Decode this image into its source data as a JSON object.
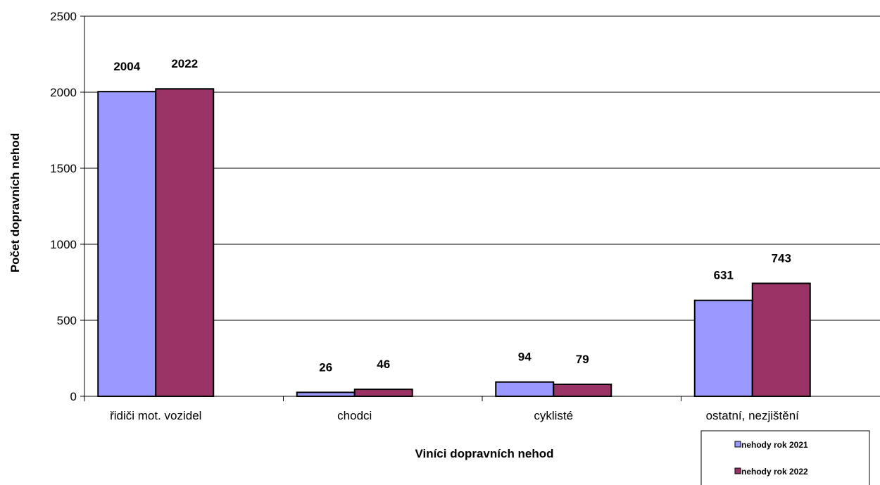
{
  "chart_data": {
    "type": "bar",
    "title": "",
    "xlabel": "Viníci dopravních nehod",
    "ylabel": "Počet dopravních nehod",
    "categories": [
      "řidiči mot. vozidel",
      "chodci",
      "cyklisté",
      "ostatní, nezjištění"
    ],
    "series": [
      {
        "name": "nehody rok 2021",
        "color": "#9999FF",
        "values": [
          2004,
          26,
          94,
          631
        ]
      },
      {
        "name": "nehody rok 2022",
        "color": "#993366",
        "values": [
          2022,
          46,
          79,
          743
        ]
      }
    ],
    "ylim": [
      0,
      2500
    ],
    "yticks": [
      0,
      500,
      1000,
      1500,
      2000,
      2500
    ],
    "grid": true,
    "legend_position": "bottom-right",
    "data_labels": true
  }
}
